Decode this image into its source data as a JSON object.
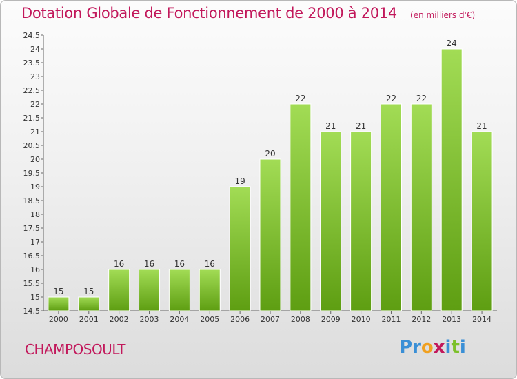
{
  "chart_data": {
    "type": "bar",
    "title": "Dotation Globale de Fonctionnement de 2000 à 2014",
    "subtitle": "(en milliers d'€)",
    "categories": [
      "2000",
      "2001",
      "2002",
      "2003",
      "2004",
      "2005",
      "2006",
      "2007",
      "2008",
      "2009",
      "2010",
      "2011",
      "2012",
      "2013",
      "2014"
    ],
    "values": [
      15,
      15,
      16,
      16,
      16,
      16,
      19,
      20,
      22,
      21,
      21,
      22,
      22,
      24,
      21
    ],
    "data_labels": [
      "15",
      "15",
      "16",
      "16",
      "16",
      "16",
      "19",
      "20",
      "22",
      "21",
      "21",
      "22",
      "22",
      "24",
      "21"
    ],
    "ylim": [
      14.5,
      24.5
    ],
    "yticks": [
      "14.5",
      "15",
      "15.5",
      "16",
      "16.5",
      "17",
      "17.5",
      "18",
      "18.5",
      "19",
      "19.5",
      "20",
      "20.5",
      "21",
      "21.5",
      "22",
      "22.5",
      "23",
      "23.5",
      "24",
      "24.5"
    ],
    "grid": false,
    "bar_color": "#7cc02a"
  },
  "commune": "CHAMPOSOULT",
  "brand": {
    "letters": [
      "P",
      "r",
      "o",
      "x",
      "i",
      "t",
      "i"
    ],
    "colors": [
      "#3a8fd6",
      "#3a8fd6",
      "#f0a020",
      "#c2185b",
      "#3a8fd6",
      "#7cc02a",
      "#3a8fd6"
    ]
  }
}
